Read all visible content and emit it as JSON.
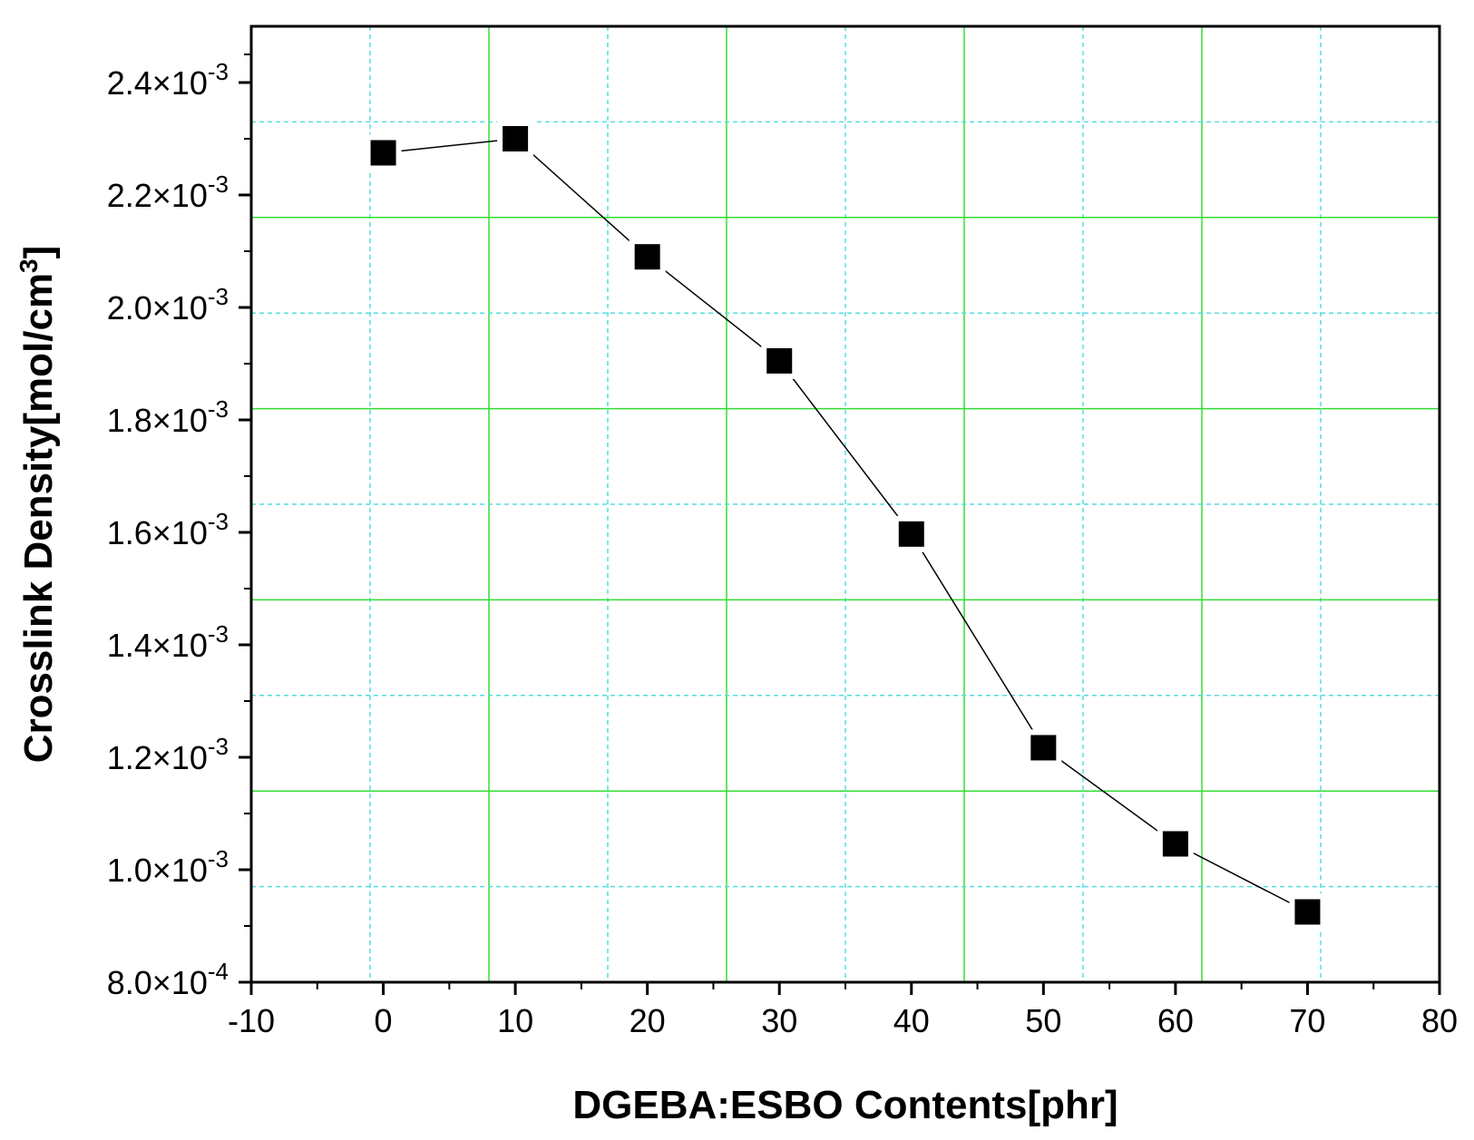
{
  "chart_data": {
    "type": "scatter",
    "title": "",
    "xlabel": "DGEBA:ESBO Contents[phr]",
    "ylabel": "Crosslink Density[mol/cm",
    "ylabel_superscript": "3",
    "ylabel_close": "]",
    "xlim": [
      -10,
      80
    ],
    "ylim": [
      0.0008,
      0.0025
    ],
    "x_ticks": [
      "-10",
      "0",
      "10",
      "20",
      "30",
      "40",
      "50",
      "60",
      "70",
      "80"
    ],
    "x_tick_values": [
      -10,
      0,
      10,
      20,
      30,
      40,
      50,
      60,
      70,
      80
    ],
    "y_ticks": [
      {
        "mantissa": "8.0×10",
        "exponent": "-4",
        "value": 0.0008
      },
      {
        "mantissa": "1.0×10",
        "exponent": "-3",
        "value": 0.001
      },
      {
        "mantissa": "1.2×10",
        "exponent": "-3",
        "value": 0.0012
      },
      {
        "mantissa": "1.4×10",
        "exponent": "-3",
        "value": 0.0014
      },
      {
        "mantissa": "1.6×10",
        "exponent": "-3",
        "value": 0.0016
      },
      {
        "mantissa": "1.8×10",
        "exponent": "-3",
        "value": 0.0018
      },
      {
        "mantissa": "2.0×10",
        "exponent": "-3",
        "value": 0.002
      },
      {
        "mantissa": "2.2×10",
        "exponent": "-3",
        "value": 0.0022
      },
      {
        "mantissa": "2.4×10",
        "exponent": "-3",
        "value": 0.0024
      }
    ],
    "series": [
      {
        "x": [
          0,
          10,
          20,
          30,
          40,
          50,
          60,
          70
        ],
        "y": [
          0.002275,
          0.0023,
          0.00209,
          0.001905,
          0.001597,
          0.001217,
          0.001046,
          0.000925
        ],
        "marker": "square",
        "connected": true
      }
    ],
    "grid": true,
    "grid_colors": {
      "major": "#33dd33",
      "minor": "#55dddd"
    },
    "marker_color": "#000000",
    "line_color": "#000000"
  }
}
